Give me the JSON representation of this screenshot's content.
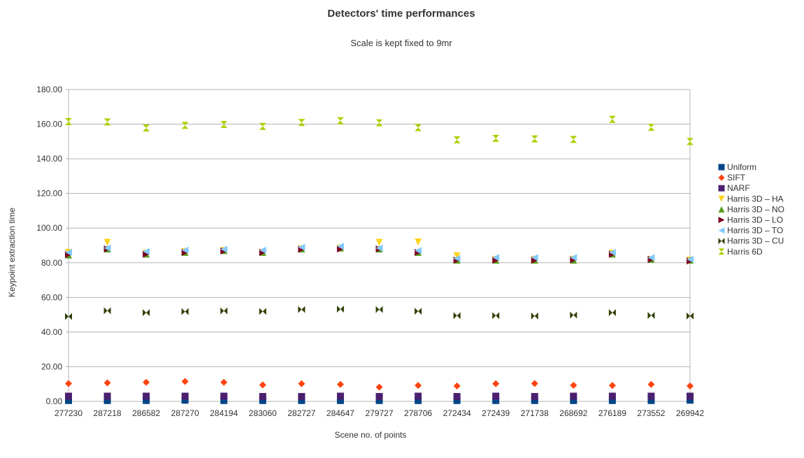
{
  "chart_data": {
    "type": "scatter",
    "title": "Detectors' time performances",
    "subtitle": "Scale is kept fixed to 9mr",
    "xlabel": "Scene no. of points",
    "ylabel": "Keypoint extraction time",
    "categories": [
      "277230",
      "287218",
      "286582",
      "287270",
      "284194",
      "283060",
      "282727",
      "284647",
      "279727",
      "278706",
      "272434",
      "272439",
      "271738",
      "268692",
      "276189",
      "273552",
      "269942"
    ],
    "ylim": [
      0,
      180
    ],
    "yticks": [
      "0.00",
      "20.00",
      "40.00",
      "60.00",
      "80.00",
      "100.00",
      "120.00",
      "140.00",
      "160.00",
      "180.00"
    ],
    "grid": "horizontal",
    "legend_position": "right",
    "series": [
      {
        "name": "Uniform",
        "color": "#004586",
        "marker": "square",
        "values": [
          0.5,
          0.5,
          0.5,
          0.7,
          0.5,
          0.5,
          0.5,
          0.5,
          0.5,
          0.5,
          0.5,
          0.5,
          0.5,
          0.5,
          0.5,
          0.5,
          0.7
        ]
      },
      {
        "name": "SIFT",
        "color": "#ff420e",
        "marker": "diamond",
        "values": [
          10.3,
          10.7,
          11.0,
          11.5,
          11.0,
          9.5,
          10.2,
          9.8,
          8.2,
          9.2,
          8.9,
          10.2,
          10.3,
          9.3,
          9.2,
          9.8,
          8.9
        ]
      },
      {
        "name": "NARF",
        "color": "#4b1f6f",
        "marker": "square",
        "values": [
          3.0,
          3.0,
          3.0,
          3.0,
          3.0,
          2.8,
          2.8,
          3.0,
          2.8,
          3.0,
          2.8,
          3.0,
          2.8,
          3.0,
          3.0,
          3.0,
          3.0
        ]
      },
      {
        "name": "Harris 3D – HA",
        "color": "#ffd320",
        "marker": "triangle-down",
        "values": [
          86.0,
          91.8,
          85.5,
          86.5,
          87.0,
          86.0,
          88.0,
          88.5,
          91.8,
          92.0,
          84.0,
          82.0,
          82.0,
          82.0,
          85.5,
          82.0,
          81.5
        ]
      },
      {
        "name": "Harris 3D – NO",
        "color": "#579d1c",
        "marker": "triangle-up",
        "values": [
          84.5,
          88.0,
          85.0,
          86.0,
          87.0,
          86.0,
          88.0,
          88.5,
          88.0,
          86.0,
          81.5,
          81.5,
          81.5,
          81.5,
          85.0,
          82.0,
          81.5
        ]
      },
      {
        "name": "Harris 3D – LO",
        "color": "#7e0021",
        "marker": "triangle-right",
        "values": [
          84.8,
          88.0,
          85.0,
          86.0,
          86.8,
          86.0,
          87.8,
          88.0,
          88.0,
          86.0,
          81.5,
          81.5,
          81.5,
          81.8,
          85.0,
          82.0,
          81.0
        ]
      },
      {
        "name": "Harris 3D – TO",
        "color": "#83caff",
        "marker": "triangle-left",
        "values": [
          86.0,
          88.5,
          86.5,
          87.3,
          87.8,
          87.3,
          89.0,
          89.5,
          88.5,
          87.0,
          82.5,
          83.0,
          83.0,
          83.0,
          86.0,
          83.0,
          82.0
        ]
      },
      {
        "name": "Harris 3D – CU",
        "color": "#314004",
        "marker": "bowtie",
        "values": [
          49.0,
          52.3,
          51.2,
          51.8,
          52.2,
          51.9,
          53.0,
          53.2,
          53.0,
          52.0,
          49.5,
          49.5,
          49.3,
          49.8,
          51.2,
          49.6,
          49.3
        ]
      },
      {
        "name": "Harris 6D",
        "color": "#aecf00",
        "marker": "hourglass",
        "values": [
          161.5,
          161.3,
          157.8,
          159.3,
          159.8,
          158.7,
          161.0,
          162.0,
          160.8,
          158.0,
          151.0,
          151.8,
          151.5,
          151.2,
          162.8,
          158.2,
          150.0
        ]
      }
    ]
  }
}
